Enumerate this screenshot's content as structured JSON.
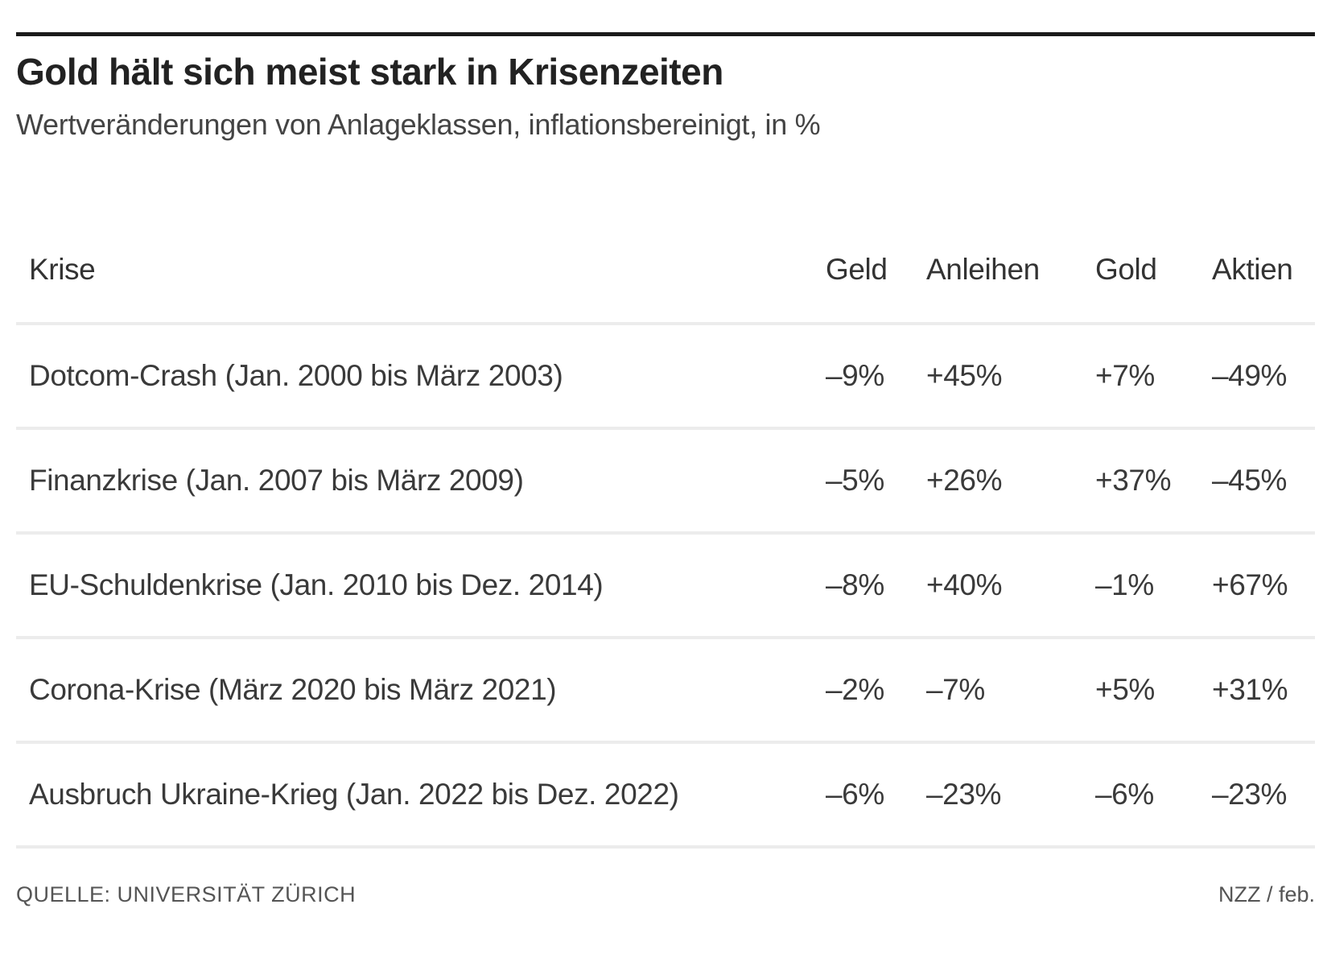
{
  "header": {
    "title": "Gold hält sich meist stark in Krisenzeiten",
    "subtitle": "Wertveränderungen von Anlageklassen, inflationsbereinigt, in %"
  },
  "chart_data": {
    "type": "table",
    "columns": [
      "Krise",
      "Geld",
      "Anleihen",
      "Gold",
      "Aktien"
    ],
    "rows": [
      [
        "Dotcom-Crash (Jan. 2000 bis März 2003)",
        "–9%",
        "+45%",
        "+7%",
        "–49%"
      ],
      [
        "Finanzkrise (Jan. 2007 bis März 2009)",
        "–5%",
        "+26%",
        "+37%",
        "–45%"
      ],
      [
        "EU-Schuldenkrise (Jan. 2010 bis Dez. 2014)",
        "–8%",
        "+40%",
        "–1%",
        "+67%"
      ],
      [
        "Corona-Krise (März 2020 bis März 2021)",
        "–2%",
        "–7%",
        "+5%",
        "+31%"
      ],
      [
        "Ausbruch Ukraine-Krieg (Jan. 2022 bis Dez. 2022)",
        "–6%",
        "–23%",
        "–6%",
        "–23%"
      ]
    ]
  },
  "footer": {
    "source": "QUELLE: UNIVERSITÄT ZÜRICH",
    "credit": "NZZ / feb."
  }
}
